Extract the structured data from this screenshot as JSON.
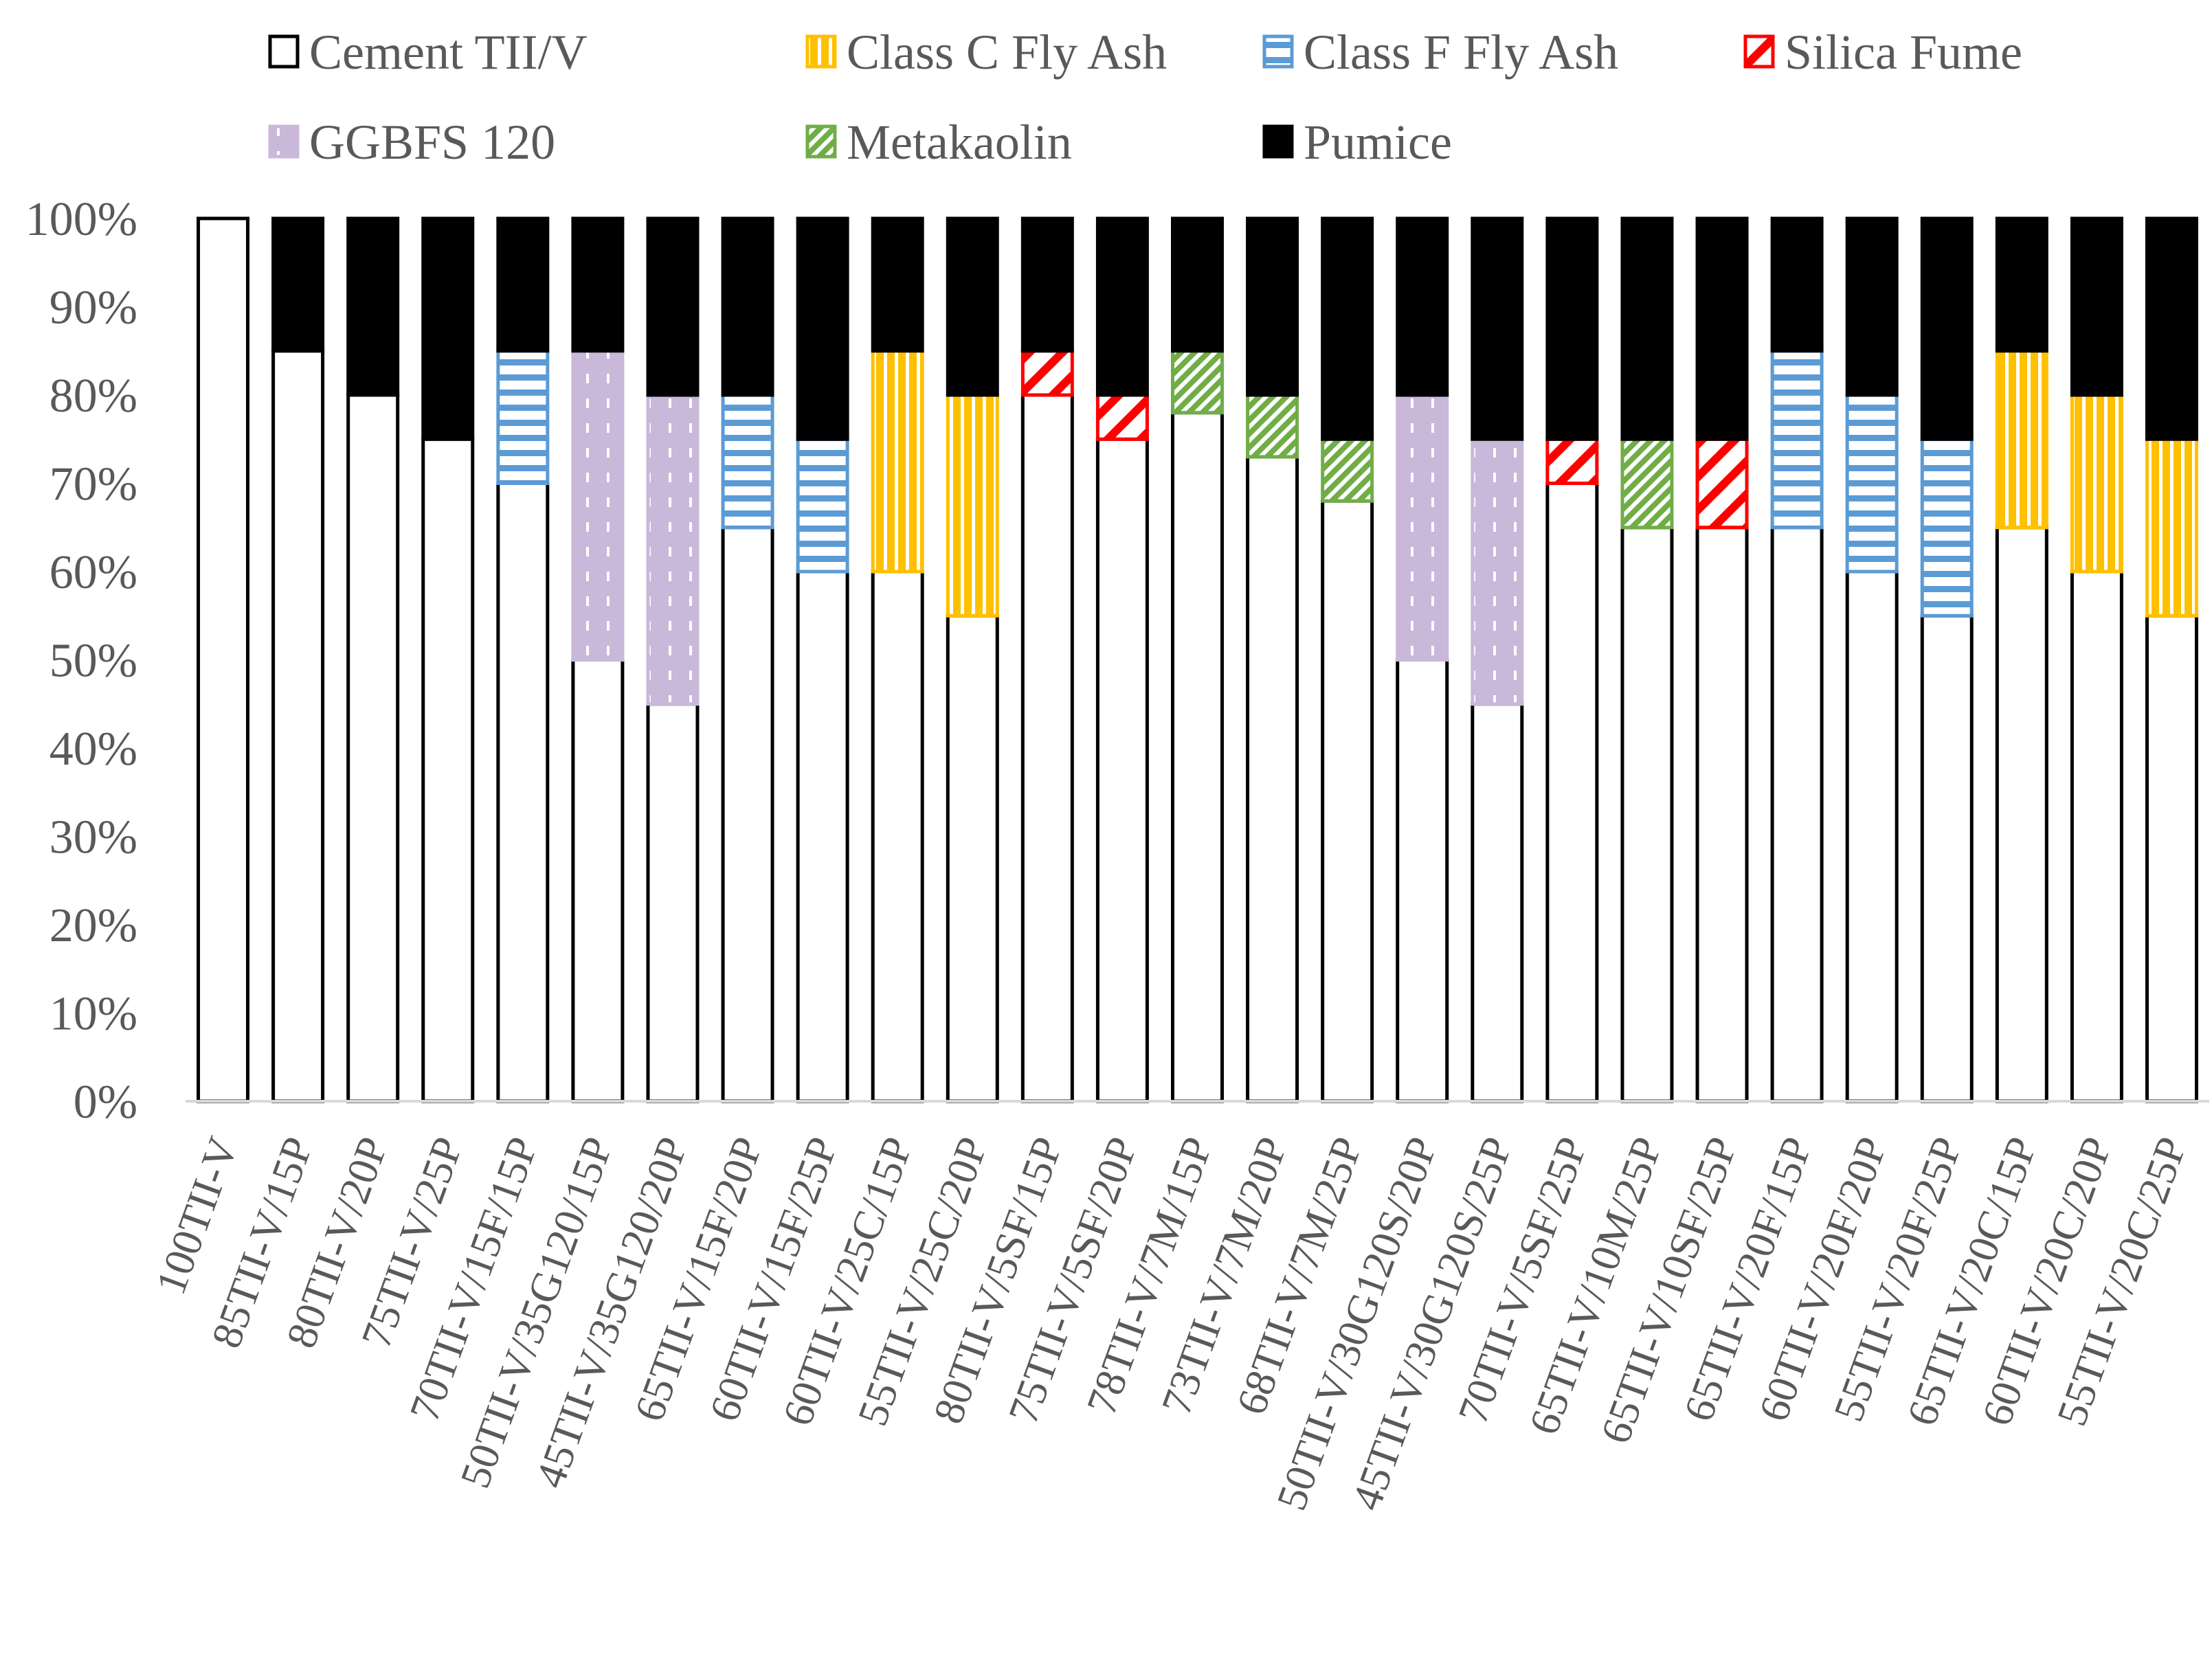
{
  "chart_data": {
    "type": "bar",
    "stacked": true,
    "percent_stacked": true,
    "ylim": [
      0,
      100
    ],
    "y_ticks": [
      "0%",
      "10%",
      "20%",
      "30%",
      "40%",
      "50%",
      "60%",
      "70%",
      "80%",
      "90%",
      "100%"
    ],
    "grid": false,
    "legend_position": "top",
    "categories": [
      "100TII-V",
      "85TII-V/15P",
      "80TII-V/20P",
      "75TII-V/25P",
      "70TII-V/15F/15P",
      "50TII-V/35G120/15P",
      "45TII-V/35G120/20P",
      "65TII-V/15F/20P",
      "60TII-V/15F/25P",
      "60TII-V/25C/15P",
      "55TII-V/25C/20P",
      "80TII-V/5SF/15P",
      "75TII-V/5SF/20P",
      "78TII-V/7M/15P",
      "73TII-V/7M/20P",
      "68TII-V/7M/25P",
      "50TII-V/30G120S/20P",
      "45TII-V/30G120S/25P",
      "70TII-V/5SF/25P",
      "65TII-V/10M/25P",
      "65TII-V/10SF/25P",
      "65TII-V/20F/15P",
      "60TII-V/20F/20P",
      "55TII-V/20F/25P",
      "65TII-V/20C/15P",
      "60TII-V/20C/20P",
      "55TII-V/20C/25P"
    ],
    "series": [
      {
        "name": "Cement TII/V",
        "color": "#ffffff",
        "pattern": "solid-white",
        "values": [
          100,
          85,
          80,
          75,
          70,
          50,
          45,
          65,
          60,
          60,
          55,
          80,
          75,
          78,
          73,
          68,
          50,
          45,
          70,
          65,
          65,
          65,
          60,
          55,
          65,
          60,
          55
        ]
      },
      {
        "name": "Class C Fly Ash",
        "color": "#FFC000",
        "pattern": "vertical-stripes",
        "values": [
          0,
          0,
          0,
          0,
          0,
          0,
          0,
          0,
          0,
          25,
          25,
          0,
          0,
          0,
          0,
          0,
          0,
          0,
          0,
          0,
          0,
          0,
          0,
          0,
          20,
          20,
          20
        ]
      },
      {
        "name": "Class F Fly Ash",
        "color": "#5B9BD5",
        "pattern": "horizontal-stripes",
        "values": [
          0,
          0,
          0,
          0,
          15,
          0,
          0,
          15,
          15,
          0,
          0,
          0,
          0,
          0,
          0,
          0,
          0,
          0,
          0,
          0,
          0,
          20,
          20,
          20,
          0,
          0,
          0
        ]
      },
      {
        "name": "Silica Fume",
        "color": "#FF0000",
        "pattern": "wide-diagonal",
        "values": [
          0,
          0,
          0,
          0,
          0,
          0,
          0,
          0,
          0,
          0,
          0,
          5,
          5,
          0,
          0,
          0,
          0,
          0,
          5,
          0,
          10,
          0,
          0,
          0,
          0,
          0,
          0
        ]
      },
      {
        "name": "GGBFS 120",
        "color": "#C9B8DA",
        "pattern": "dotted-vertical",
        "values": [
          0,
          0,
          0,
          0,
          0,
          35,
          35,
          0,
          0,
          0,
          0,
          0,
          0,
          0,
          0,
          0,
          30,
          30,
          0,
          0,
          0,
          0,
          0,
          0,
          0,
          0,
          0
        ]
      },
      {
        "name": "Metakaolin",
        "color": "#70AD47",
        "pattern": "narrow-diagonal",
        "values": [
          0,
          0,
          0,
          0,
          0,
          0,
          0,
          0,
          0,
          0,
          0,
          0,
          0,
          7,
          7,
          7,
          0,
          0,
          0,
          10,
          0,
          0,
          0,
          0,
          0,
          0,
          0
        ]
      },
      {
        "name": "Pumice",
        "color": "#000000",
        "pattern": "solid-black",
        "values": [
          0,
          15,
          20,
          25,
          15,
          15,
          20,
          20,
          25,
          15,
          20,
          15,
          20,
          15,
          20,
          25,
          20,
          25,
          25,
          25,
          25,
          15,
          20,
          25,
          15,
          20,
          25
        ]
      }
    ]
  }
}
